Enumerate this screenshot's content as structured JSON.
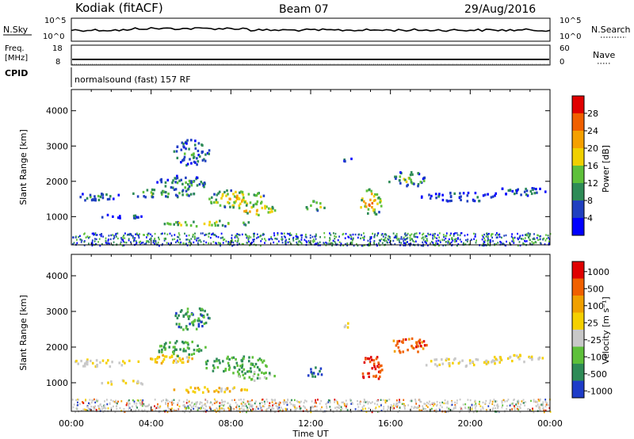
{
  "header": {
    "station": "Kodiak (fitACF)",
    "beam": "Beam 07",
    "date": "29/Aug/2016"
  },
  "noise_panel": {
    "left_label": "N.Sky",
    "right_label": "N.Search",
    "tick_top": "10^5",
    "tick_bottom": "10^0"
  },
  "freq_panel": {
    "left_label_1": "Freq.",
    "left_label_2": "[MHz]",
    "right_label": "Nave",
    "left_ticks": [
      "18",
      "8"
    ],
    "right_ticks": [
      "60",
      "0"
    ]
  },
  "cpid_panel": {
    "label": "CPID",
    "text": "normalsound (fast) 157 RF"
  },
  "chart_data": [
    {
      "type": "heatmap",
      "name": "power",
      "ylabel": "Slant Range [km]",
      "ylim": [
        200,
        4600
      ],
      "yticks": [
        "1000",
        "2000",
        "3000",
        "4000"
      ],
      "xlabel": "Time UT",
      "xlim": [
        0,
        24
      ],
      "xticks": [
        "00:00",
        "04:00",
        "08:00",
        "12:00",
        "16:00",
        "20:00",
        "00:00"
      ],
      "colorbar": {
        "label": "Power [dB]",
        "ticks": [
          "4",
          "8",
          "12",
          "16",
          "20",
          "24",
          "28"
        ],
        "colors": [
          "#0000ff",
          "#2040c0",
          "#2e8b57",
          "#5ec03a",
          "#f0d000",
          "#f5a000",
          "#f06000",
          "#e00000"
        ]
      }
    },
    {
      "type": "heatmap",
      "name": "velocity",
      "ylabel": "Slant Range [km]",
      "ylim": [
        200,
        4600
      ],
      "yticks": [
        "1000",
        "2000",
        "3000",
        "4000"
      ],
      "xlabel": "Time UT",
      "xlim": [
        0,
        24
      ],
      "xticks": [
        "00:00",
        "04:00",
        "08:00",
        "12:00",
        "16:00",
        "20:00",
        "00:00"
      ],
      "colorbar": {
        "label": "Velocity [m s⁻¹]",
        "ticks": [
          "1000",
          "500",
          "100",
          "25",
          "-25",
          "-100",
          "-500",
          "-1000"
        ],
        "colors": [
          "#1e3cc8",
          "#2e8b57",
          "#5ec03a",
          "#c8c8c8",
          "#f5d000",
          "#f0a000",
          "#f06000",
          "#e00000"
        ]
      }
    }
  ]
}
